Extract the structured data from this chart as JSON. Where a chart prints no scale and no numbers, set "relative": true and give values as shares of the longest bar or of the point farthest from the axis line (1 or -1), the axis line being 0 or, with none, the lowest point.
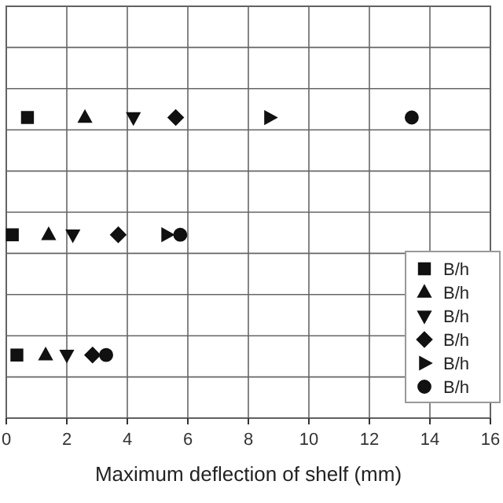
{
  "chart_data": {
    "type": "scatter",
    "xlabel": "Maximum deflection of shelf (mm)",
    "relative": true,
    "xlim": [
      0,
      16
    ],
    "xticks": [
      0,
      2,
      4,
      6,
      8,
      10,
      12,
      14,
      16
    ],
    "grid": true,
    "legend": "bottom right",
    "tick_labels": "x",
    "series": [
      {
        "name": "B/h",
        "color": "#111111",
        "marker": "square",
        "x": [
          0.7,
          0.2,
          0.35
        ],
        "values": [
          1,
          0.61,
          0.21
        ]
      },
      {
        "name": "B/h",
        "color": "#111111",
        "marker": "triangle",
        "x": [
          2.6,
          1.4,
          1.3
        ],
        "values": [
          1,
          0.61,
          0.21
        ]
      },
      {
        "name": "B/h",
        "color": "#111111",
        "marker": "triangle-down",
        "x": [
          4.2,
          2.2,
          2.0
        ],
        "values": [
          1,
          0.61,
          0.21
        ]
      },
      {
        "name": "B/h",
        "color": "#111111",
        "marker": "diamond",
        "x": [
          5.6,
          3.7,
          2.85
        ],
        "values": [
          1,
          0.61,
          0.21
        ]
      },
      {
        "name": "B/h",
        "color": "#111111",
        "marker": "triangle-right",
        "x": [
          8.7,
          5.3
        ],
        "values": [
          1,
          0.61
        ]
      },
      {
        "name": "B/h",
        "color": "#111111",
        "marker": "circle",
        "x": [
          13.4,
          5.75,
          3.3
        ],
        "values": [
          1,
          0.61,
          0.21
        ]
      }
    ]
  }
}
